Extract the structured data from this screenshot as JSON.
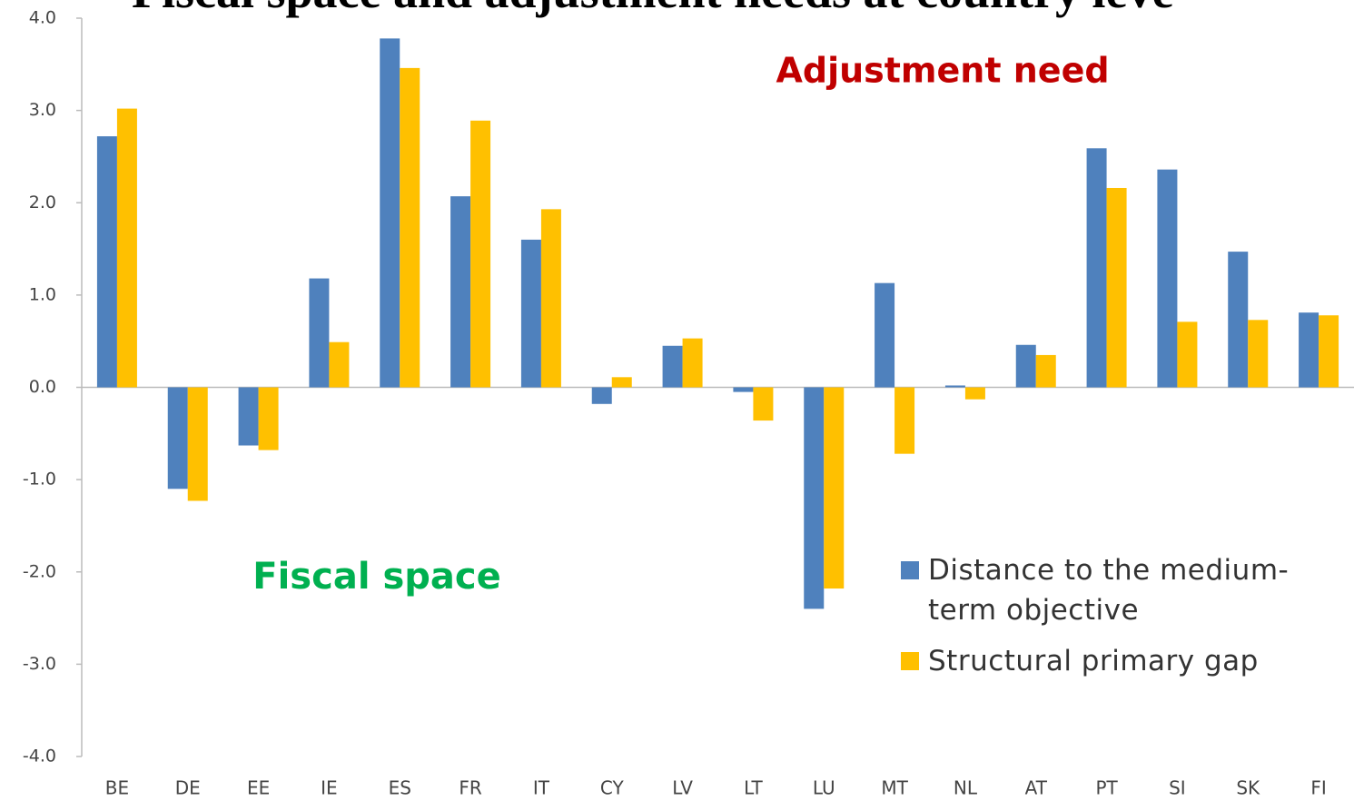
{
  "chart_data": {
    "type": "bar",
    "title": "Fiscal space and adjustment needs at country leve",
    "annotations": [
      "Adjustment need",
      "Fiscal space"
    ],
    "categories": [
      "BE",
      "DE",
      "EE",
      "IE",
      "ES",
      "FR",
      "IT",
      "CY",
      "LV",
      "LT",
      "LU",
      "MT",
      "NL",
      "AT",
      "PT",
      "SI",
      "SK",
      "FI"
    ],
    "series": [
      {
        "name": "Distance to the medium-term objective",
        "color": "#4f81bd",
        "values": [
          2.72,
          -1.1,
          -0.63,
          1.18,
          3.78,
          2.07,
          1.6,
          -0.18,
          0.45,
          -0.05,
          -2.4,
          1.13,
          0.02,
          0.46,
          2.59,
          2.36,
          1.47,
          0.81
        ]
      },
      {
        "name": "Structural primary gap",
        "color": "#ffc000",
        "values": [
          3.02,
          -1.23,
          -0.68,
          0.49,
          3.46,
          2.89,
          1.93,
          0.11,
          0.53,
          -0.36,
          -2.18,
          -0.72,
          -0.13,
          0.35,
          2.16,
          0.71,
          0.73,
          0.78
        ]
      }
    ],
    "ylim": [
      -4,
      4
    ],
    "yticks": [
      {
        "value": 4,
        "label": "4.0"
      },
      {
        "value": 3,
        "label": "3.0"
      },
      {
        "value": 2,
        "label": "2.0"
      },
      {
        "value": 1,
        "label": "1.0"
      },
      {
        "value": 0,
        "label": "0.0"
      },
      {
        "value": -1,
        "label": "-1.0"
      },
      {
        "value": -2,
        "label": "-2.0"
      },
      {
        "value": -3,
        "label": "-3.0"
      },
      {
        "value": -4,
        "label": "-4.0"
      }
    ],
    "grid": false
  }
}
